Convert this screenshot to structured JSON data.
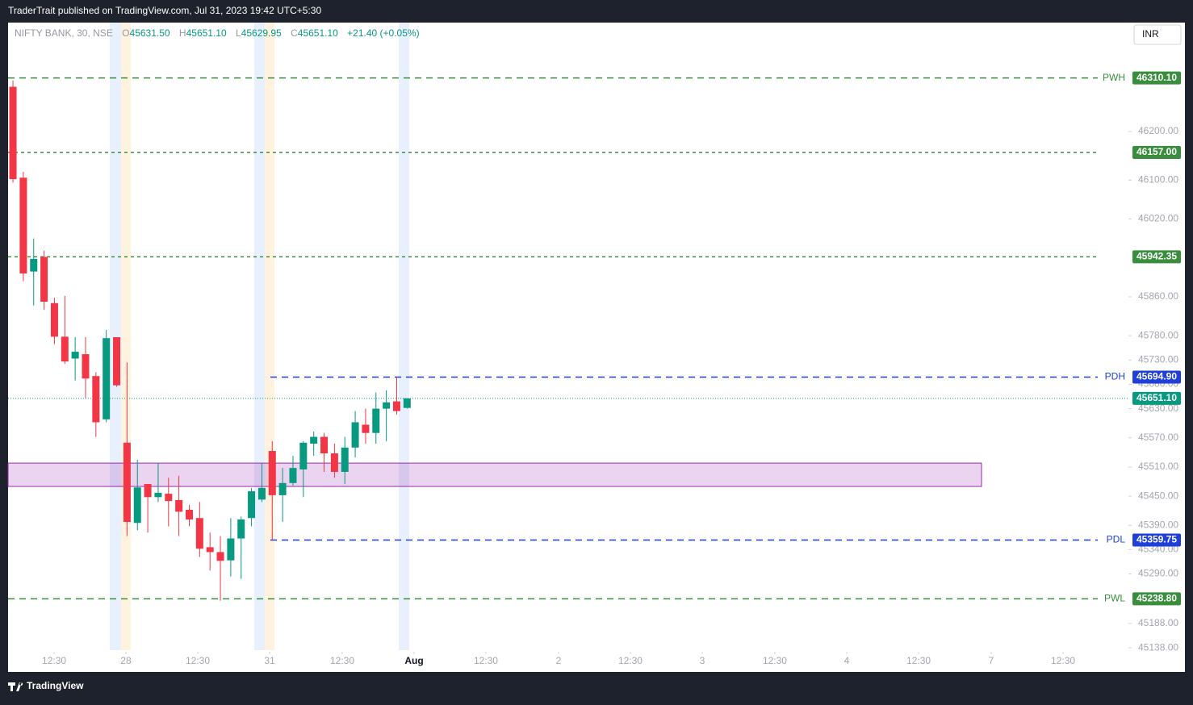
{
  "header": {
    "published": "TraderTrait published on TradingView.com, Jul 31, 2023 19:42 UTC+5:30",
    "currency": "INR",
    "brand": "TradingView"
  },
  "legend": {
    "symbol": "NIFTY BANK, 30, NSE",
    "o": "O",
    "open": "45631.50",
    "h": "H",
    "high": "45651.10",
    "l": "L",
    "low": "45629.95",
    "c": "C",
    "close": "45651.10",
    "change": "+21.40 (+0.05%)"
  },
  "chart_data": {
    "type": "candlestick",
    "up_color": "#089981",
    "down_color": "#f23645",
    "categories": [
      null,
      null,
      null,
      null,
      null,
      null,
      null,
      null,
      null,
      null,
      null,
      null,
      null,
      null,
      null,
      null,
      null,
      null,
      null,
      null,
      null,
      null,
      null,
      null,
      null,
      null,
      null,
      null,
      null,
      null,
      null,
      null,
      null,
      null,
      null,
      null,
      null,
      null,
      null
    ],
    "open": [
      46292,
      46105,
      45912,
      45942,
      45847,
      45778,
      45733,
      45742,
      45697,
      45608,
      45777,
      45560,
      45395,
      45475,
      45448,
      45455,
      45442,
      45422,
      45405,
      45345,
      45335,
      45318,
      45363,
      45405,
      45443,
      45543,
      45452,
      45477,
      45505,
      45558,
      45572,
      45538,
      45500,
      45550,
      45597,
      45580,
      45630,
      45645,
      45631.5
    ],
    "high": [
      46305,
      46117,
      45980,
      45955,
      45858,
      45862,
      45777,
      45777,
      45705,
      45792,
      45777,
      45725,
      45525,
      45475,
      45518,
      45488,
      45492,
      45432,
      45438,
      45375,
      45368,
      45405,
      45408,
      45467,
      45517,
      45563,
      45508,
      45533,
      45563,
      45583,
      45580,
      45558,
      45572,
      45625,
      45630,
      45663,
      45668,
      45694.9,
      45651.1
    ],
    "low": [
      46095,
      45892,
      45842,
      45833,
      45763,
      45722,
      45688,
      45652,
      45572,
      45602,
      45675,
      45368,
      45380,
      45375,
      45438,
      45388,
      45368,
      45388,
      45325,
      45297,
      45235,
      45285,
      45280,
      45388,
      45438,
      45359.75,
      45397,
      45472,
      45448,
      45533,
      45500,
      45488,
      45475,
      45530,
      45558,
      45558,
      45563,
      45618,
      45629.95
    ],
    "close": [
      46102,
      45908,
      45938,
      45850,
      45778,
      45727,
      45747,
      45692,
      45602,
      45775,
      45678,
      45397,
      45468,
      45448,
      45457,
      45440,
      45418,
      45402,
      45342,
      45335,
      45317,
      45363,
      45402,
      45460,
      45467,
      45452,
      45477,
      45508,
      45560,
      45572,
      45538,
      45500,
      45550,
      45602,
      45580,
      45630,
      45643,
      45625,
      45651.1
    ],
    "ylim": [
      45130,
      46424
    ],
    "yticks": [
      {
        "value": 46200,
        "label": "46200.00"
      },
      {
        "value": 46100,
        "label": "46100.00"
      },
      {
        "value": 46020,
        "label": "46020.00"
      },
      {
        "value": 45860,
        "label": "45860.00"
      },
      {
        "value": 45780,
        "label": "45780.00"
      },
      {
        "value": 45730,
        "label": "45730.00"
      },
      {
        "value": 45680,
        "label": "45680.00"
      },
      {
        "value": 45630,
        "label": "45630.00"
      },
      {
        "value": 45570,
        "label": "45570.00"
      },
      {
        "value": 45510,
        "label": "45510.00"
      },
      {
        "value": 45450,
        "label": "45450.00"
      },
      {
        "value": 45390,
        "label": "45390.00"
      },
      {
        "value": 45340,
        "label": "45340.00"
      },
      {
        "value": 45290,
        "label": "45290.00"
      },
      {
        "value": 45188,
        "label": "45188.00"
      },
      {
        "value": 45138,
        "label": "45138.00"
      }
    ],
    "xlim": [
      -0.47,
      107.55
    ],
    "xticks": [
      {
        "value": 3.97,
        "label": "12:30"
      },
      {
        "value": 10.89,
        "label": "28"
      },
      {
        "value": 17.82,
        "label": "12:30"
      },
      {
        "value": 24.75,
        "label": "31"
      },
      {
        "value": 31.75,
        "label": "12:30"
      },
      {
        "value": 38.68,
        "label": "Aug"
      },
      {
        "value": 45.6,
        "label": "12:30"
      },
      {
        "value": 52.6,
        "label": "2"
      },
      {
        "value": 59.53,
        "label": "12:30"
      },
      {
        "value": 66.46,
        "label": "3"
      },
      {
        "value": 73.46,
        "label": "12:30"
      },
      {
        "value": 80.39,
        "label": "4"
      },
      {
        "value": 87.32,
        "label": "12:30"
      },
      {
        "value": 94.32,
        "label": "7"
      },
      {
        "value": 101.25,
        "label": "12:30"
      }
    ],
    "levels": [
      {
        "name": "PWH",
        "value": 46310.1,
        "label": "46310.10",
        "color": "#388e3c",
        "dash": "long"
      },
      {
        "value": 46157,
        "label": "46157.00",
        "color": "#388e3c",
        "dash": "short"
      },
      {
        "value": 45942.35,
        "label": "45942.35",
        "color": "#388e3c",
        "dash": "short"
      },
      {
        "name": "PDH",
        "value": 45694.9,
        "label": "45694.90",
        "color": "#1e3fd8",
        "dash": "long"
      },
      {
        "name": "PDL",
        "value": 45359.75,
        "label": "45359.75",
        "color": "#1e3fd8",
        "dash": "long"
      },
      {
        "name": "PWL",
        "value": 45238.8,
        "label": "45238.80",
        "color": "#388e3c",
        "dash": "long"
      }
    ],
    "last_price": {
      "value": 45651.1,
      "label": "45651.10",
      "color": "#089981"
    },
    "zone": {
      "high": 45518,
      "low": 45470,
      "color": "#9c27b0"
    }
  }
}
